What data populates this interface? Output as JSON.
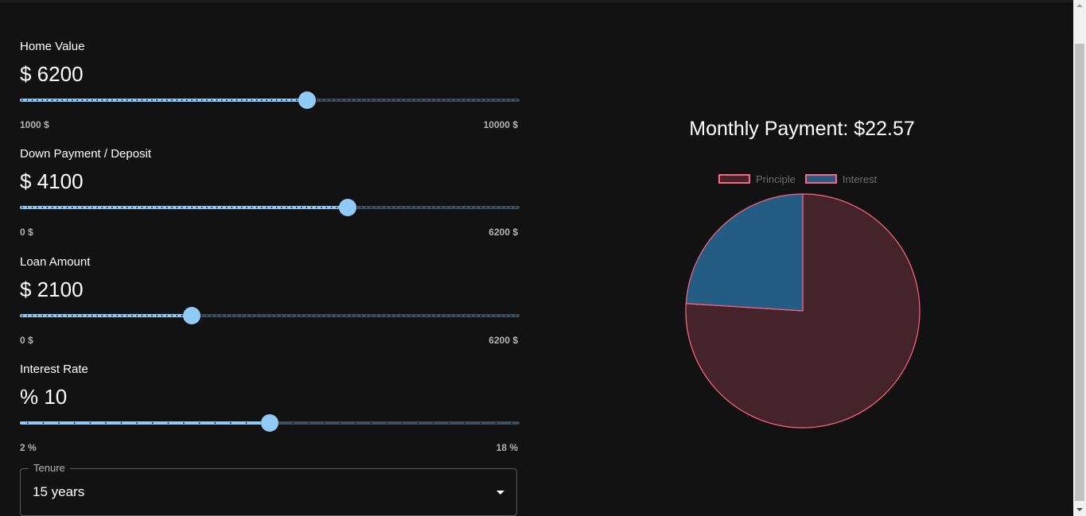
{
  "sliders": [
    {
      "label": "Home Value",
      "display": "$ 6200",
      "min_label": "1000 $",
      "max_label": "10000 $",
      "min": 1000,
      "max": 10000,
      "value": 6200,
      "step_marks": 100
    },
    {
      "label": "Down Payment / Deposit",
      "display": "$ 4100",
      "min_label": "0 $",
      "max_label": "6200 $",
      "min": 0,
      "max": 6200,
      "value": 4100,
      "step_marks": 100
    },
    {
      "label": "Loan Amount",
      "display": "$ 2100",
      "min_label": "0 $",
      "max_label": "6200 $",
      "min": 0,
      "max": 6200,
      "value": 2100,
      "step_marks": 100
    },
    {
      "label": "Interest Rate",
      "display": "% 10",
      "min_label": "2 %",
      "max_label": "18 %",
      "min": 2,
      "max": 18,
      "value": 10,
      "step_marks": 32
    }
  ],
  "tenure": {
    "label": "Tenure",
    "value": "15 years"
  },
  "chart": {
    "title": "Monthly Payment: $22.57"
  },
  "chart_data": {
    "type": "pie",
    "title": "Monthly Payment: $22.57",
    "labels": [
      "Principle",
      "Interest"
    ],
    "values": [
      76,
      24
    ],
    "colors": [
      "#45232b",
      "#245d84"
    ],
    "border_color": "#ff6384",
    "legend": "top"
  },
  "colors": {
    "accent": "#90caf9",
    "background": "#121212"
  }
}
